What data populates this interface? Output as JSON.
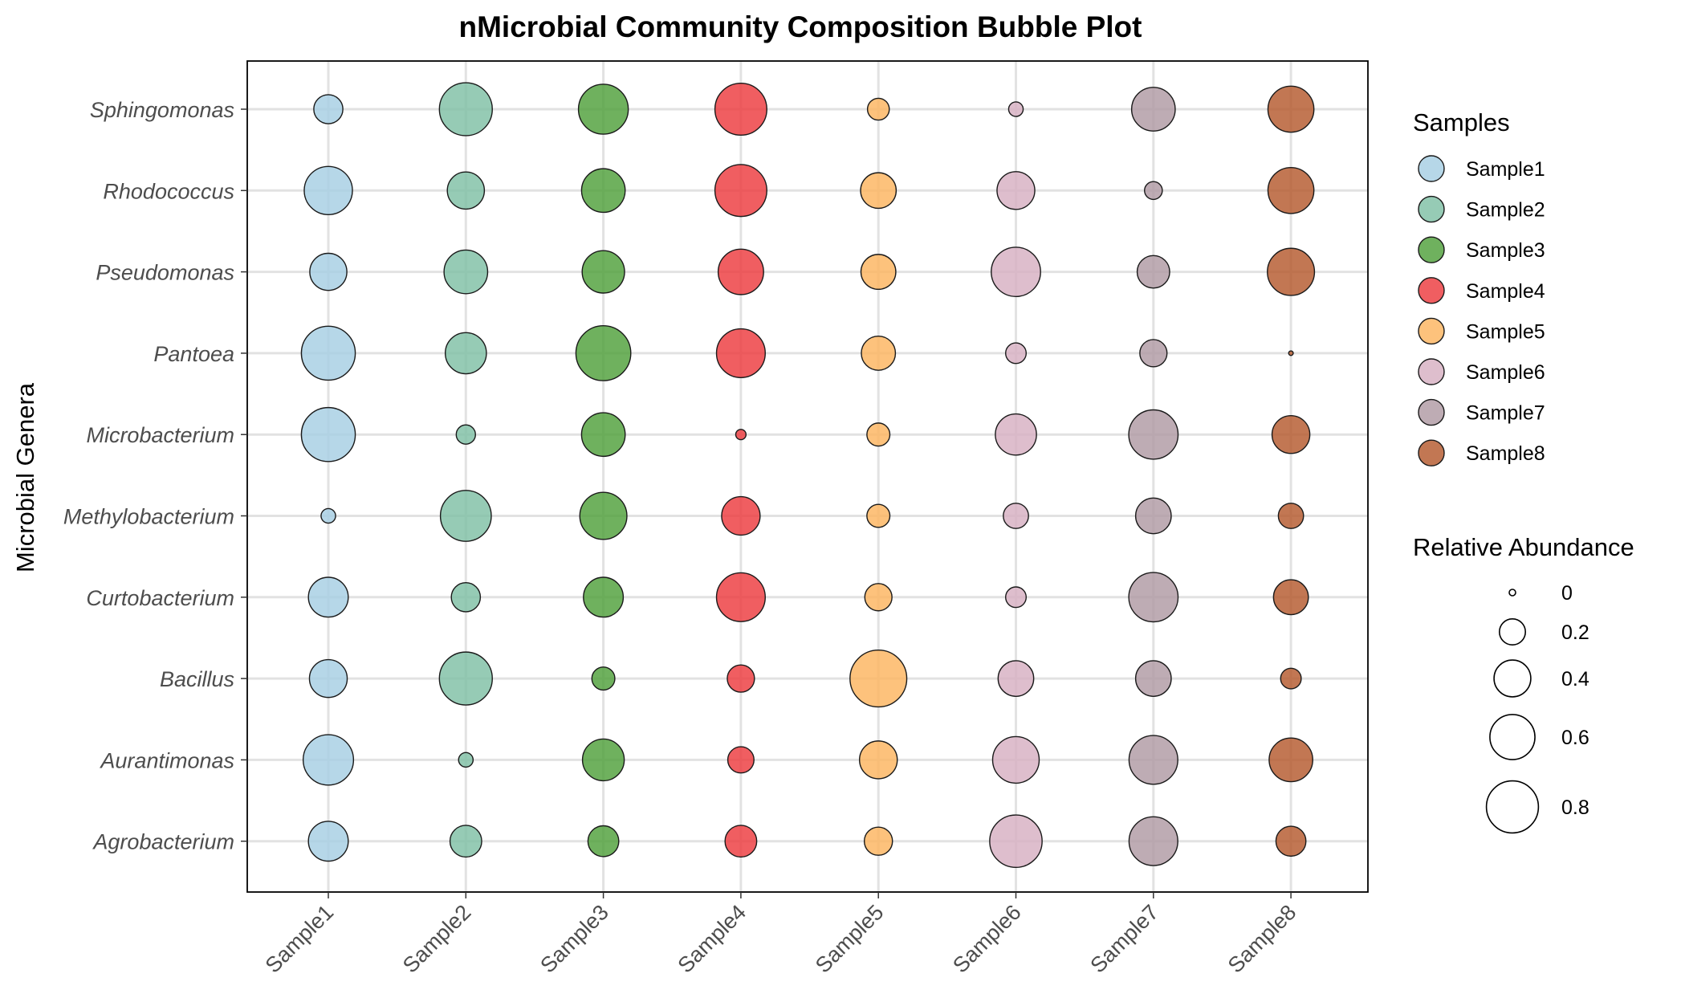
{
  "chart_data": {
    "type": "bubble",
    "title": "nMicrobial Community Composition Bubble Plot",
    "xlabel": "",
    "ylabel": "Microbial Genera",
    "categories_x": [
      "Sample1",
      "Sample2",
      "Sample3",
      "Sample4",
      "Sample5",
      "Sample6",
      "Sample7",
      "Sample8"
    ],
    "categories_y": [
      "Sphingomonas",
      "Rhodococcus",
      "Pseudomonas",
      "Pantoea",
      "Microbacterium",
      "Methylobacterium",
      "Curtobacterium",
      "Bacillus",
      "Aurantimonas",
      "Agrobacterium"
    ],
    "grid": true,
    "legend_position": "right",
    "series": [
      {
        "name": "Sample1",
        "color": "#a6cee3",
        "values": [
          0.16,
          0.44,
          0.26,
          0.55,
          0.55,
          0.04,
          0.3,
          0.27,
          0.48,
          0.3
        ]
      },
      {
        "name": "Sample2",
        "color": "#7fbfa5",
        "values": [
          0.53,
          0.26,
          0.36,
          0.32,
          0.07,
          0.49,
          0.16,
          0.53,
          0.04,
          0.19
        ]
      },
      {
        "name": "Sample3",
        "color": "#4fa03a",
        "values": [
          0.47,
          0.36,
          0.34,
          0.57,
          0.36,
          0.42,
          0.3,
          0.1,
          0.33,
          0.18
        ]
      },
      {
        "name": "Sample4",
        "color": "#ed3b3e",
        "values": [
          0.51,
          0.51,
          0.39,
          0.45,
          0.02,
          0.28,
          0.45,
          0.14,
          0.13,
          0.19
        ]
      },
      {
        "name": "Sample5",
        "color": "#fdb55f",
        "values": [
          0.09,
          0.24,
          0.23,
          0.22,
          0.1,
          0.1,
          0.14,
          0.61,
          0.27,
          0.15
        ]
      },
      {
        "name": "Sample6",
        "color": "#d7b0c2",
        "values": [
          0.04,
          0.27,
          0.46,
          0.08,
          0.32,
          0.12,
          0.08,
          0.24,
          0.41,
          0.52
        ]
      },
      {
        "name": "Sample7",
        "color": "#b09aa3",
        "values": [
          0.36,
          0.06,
          0.2,
          0.14,
          0.46,
          0.24,
          0.46,
          0.24,
          0.45,
          0.45
        ]
      },
      {
        "name": "Sample8",
        "color": "#b5592d",
        "values": [
          0.4,
          0.4,
          0.42,
          0.004,
          0.27,
          0.12,
          0.23,
          0.08,
          0.36,
          0.17
        ]
      }
    ],
    "size_legend": {
      "title": "Relative Abundance",
      "levels": [
        0,
        0.2,
        0.4,
        0.6,
        0.8
      ],
      "labels": [
        "0",
        "0.2",
        "0.4",
        "0.6",
        "0.8"
      ]
    },
    "color_legend": {
      "title": "Samples"
    }
  }
}
